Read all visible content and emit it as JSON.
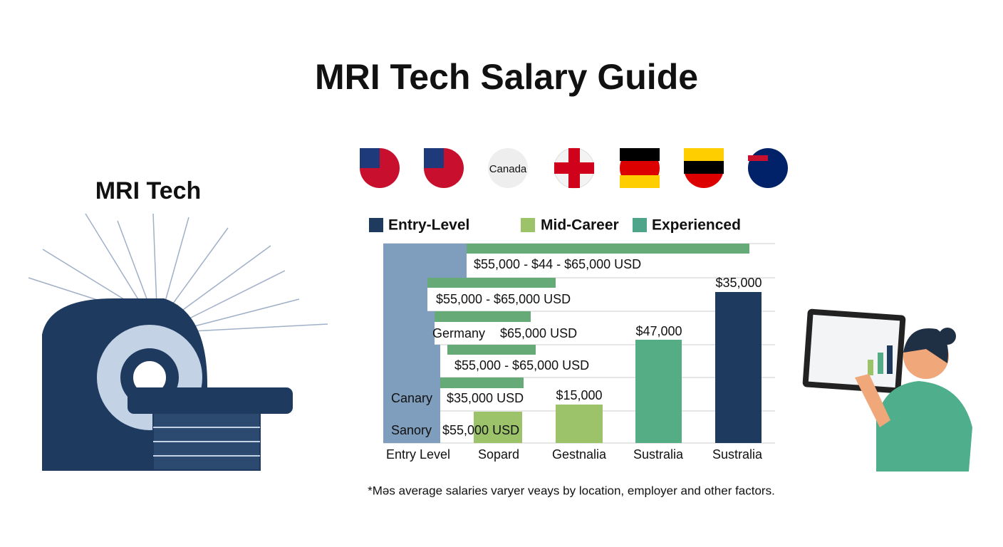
{
  "title": "MRI Tech Salary Guide",
  "illustration_label": "MRI Tech",
  "flag_label": "Canada",
  "legend": [
    "Entry-Level",
    "Mid-Career",
    "Experienced"
  ],
  "row_labels": [
    "$55,000 - $44 - $65,000 USD",
    "$55,000 - $65,000 USD",
    "Germany",
    "$65,000 USD",
    "$55,000 - $65,000 USD",
    "Canary",
    "$35,000 USD",
    "Sanory",
    "$55,000 USD"
  ],
  "column_labels": [
    "$15,000",
    "$47,000",
    "$35,000"
  ],
  "x_labels": [
    "Entry Level",
    "Sopard",
    "Gestnalia",
    "Sustralia",
    "Sustralia"
  ],
  "footnote": "*Mǝs average salaries varyer veays by location, employer and other factors."
}
